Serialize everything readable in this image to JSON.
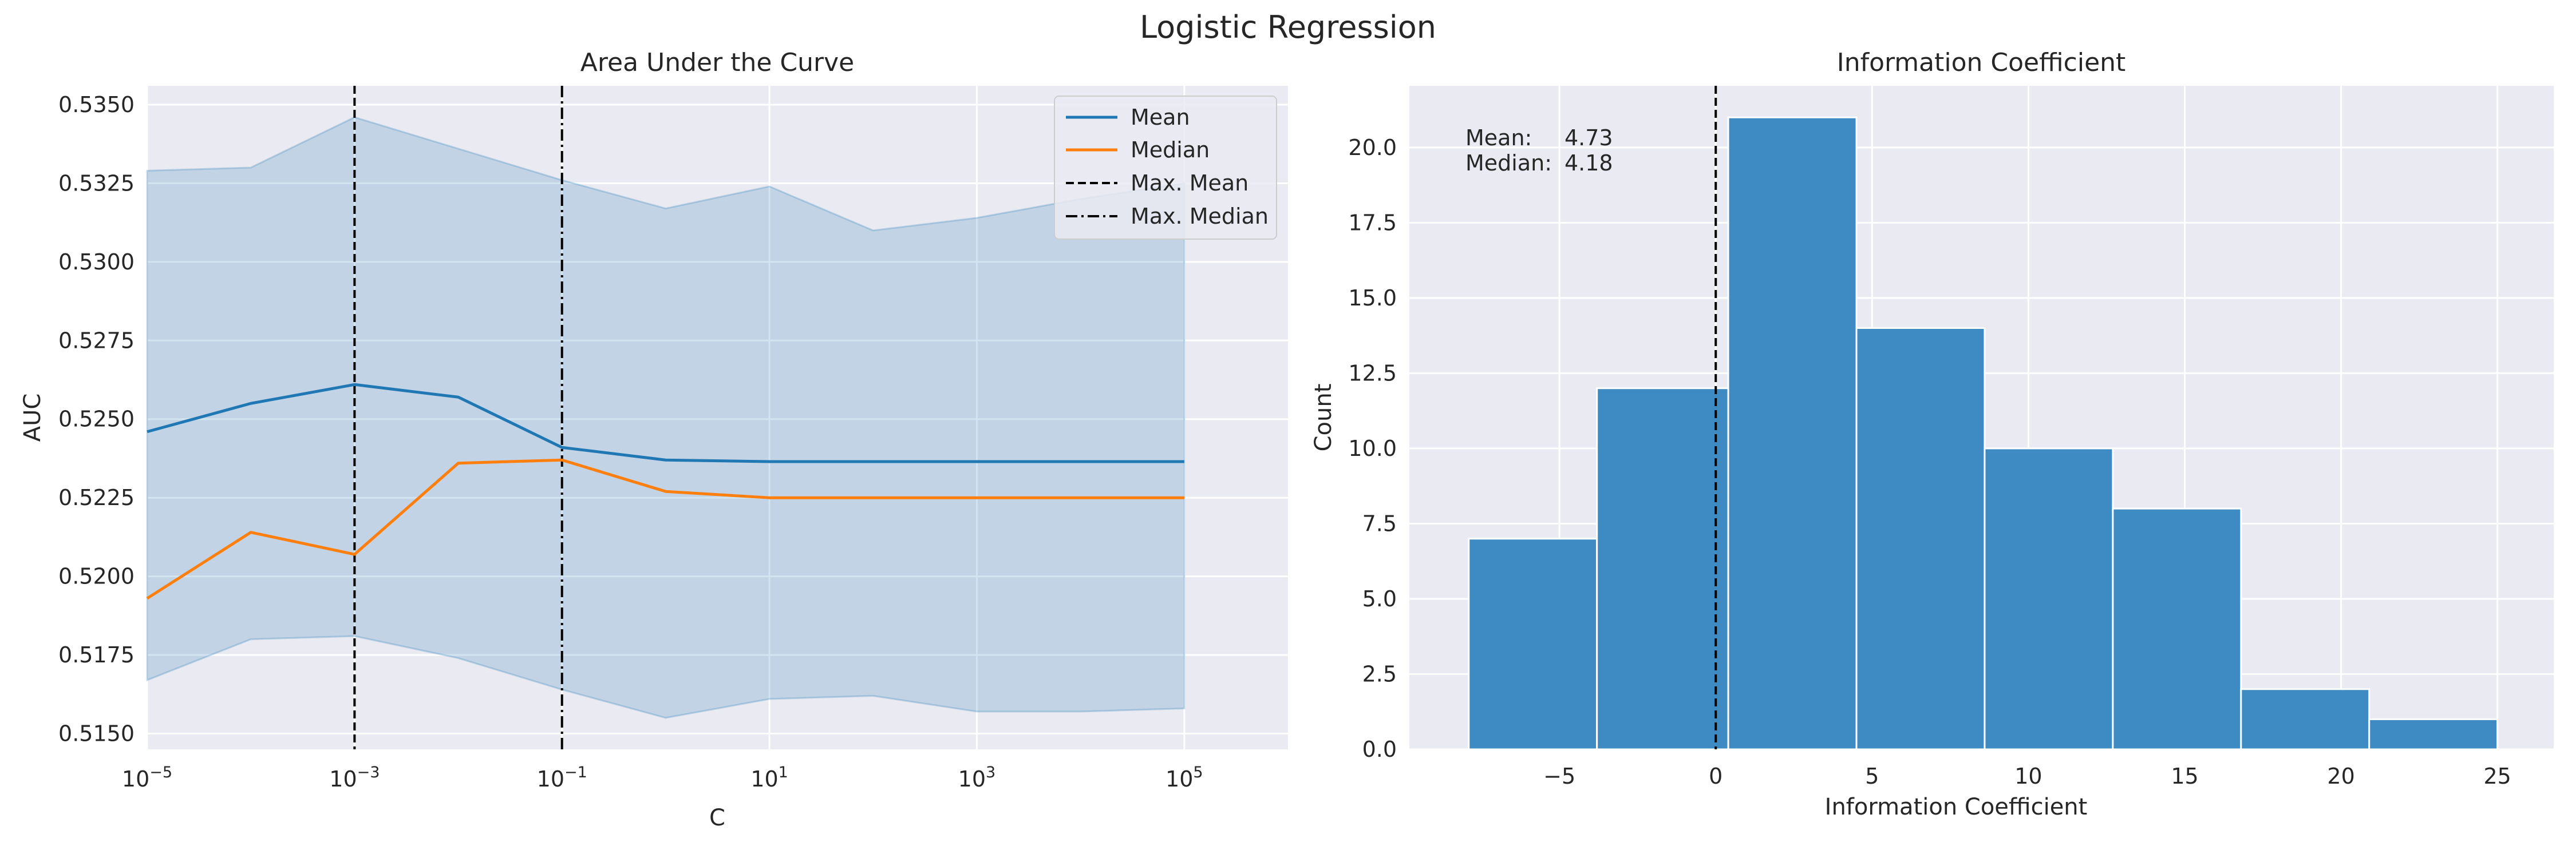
{
  "figure": {
    "suptitle": "Logistic Regression"
  },
  "chart_data": [
    {
      "type": "line",
      "title": "Area Under the Curve",
      "xlabel": "C",
      "ylabel": "AUC",
      "xscale": "log",
      "xlim_log10": [
        -5,
        6
      ],
      "ylim": [
        0.5145,
        0.5356
      ],
      "xticks_log10": [
        -5,
        -3,
        -1,
        1,
        3,
        5
      ],
      "yticks": [
        0.515,
        0.5175,
        0.52,
        0.5225,
        0.525,
        0.5275,
        0.53,
        0.5325,
        0.535
      ],
      "ytick_labels": [
        "0.5150",
        "0.5175",
        "0.5200",
        "0.5225",
        "0.5250",
        "0.5275",
        "0.5300",
        "0.5325",
        "0.5350"
      ],
      "x_log10": [
        -5,
        -4,
        -3,
        -2,
        -1,
        0,
        1,
        2,
        3,
        4,
        5
      ],
      "series": [
        {
          "name": "Mean",
          "color": "#1f77b4",
          "style": "solid",
          "values": [
            0.5246,
            0.5255,
            0.5261,
            0.5257,
            0.5241,
            0.5237,
            0.52365,
            0.52365,
            0.52365,
            0.52365,
            0.52365
          ]
        },
        {
          "name": "Median",
          "color": "#ff7f0e",
          "style": "solid",
          "values": [
            0.5193,
            0.5214,
            0.5207,
            0.5236,
            0.5237,
            0.5227,
            0.5225,
            0.5225,
            0.5225,
            0.5225,
            0.5225
          ]
        }
      ],
      "band": {
        "color": "#1f77b4",
        "upper": [
          0.5329,
          0.533,
          0.5346,
          0.5336,
          0.5326,
          0.5317,
          0.5324,
          0.531,
          0.5314,
          0.532,
          0.5325
        ],
        "lower": [
          0.5167,
          0.518,
          0.5181,
          0.5174,
          0.5164,
          0.5155,
          0.5161,
          0.5162,
          0.5157,
          0.5157,
          0.5158
        ]
      },
      "vlines": [
        {
          "name": "Max. Mean",
          "x_log10": -3,
          "style": "dashed",
          "color": "#000000"
        },
        {
          "name": "Max. Median",
          "x_log10": -1,
          "style": "dashdot",
          "color": "#000000"
        }
      ],
      "legend": {
        "placement": "top-right",
        "entries": [
          "Mean",
          "Median",
          "Max. Mean",
          "Max. Median"
        ]
      },
      "grid": true
    },
    {
      "type": "bar",
      "subtype": "histogram",
      "title": "Information Coefficient",
      "xlabel": "Information Coefficient",
      "ylabel": "Count",
      "xlim": [
        -9.8,
        26.8
      ],
      "ylim": [
        0,
        22.05
      ],
      "xticks": [
        -5,
        0,
        5,
        10,
        15,
        20,
        25
      ],
      "yticks": [
        0.0,
        2.5,
        5.0,
        7.5,
        10.0,
        12.5,
        15.0,
        17.5,
        20.0
      ],
      "ytick_labels": [
        "0.0",
        "2.5",
        "5.0",
        "7.5",
        "10.0",
        "12.5",
        "15.0",
        "17.5",
        "20.0"
      ],
      "bin_edges": [
        -7.9,
        -3.8,
        0.4,
        4.5,
        8.6,
        12.7,
        16.8,
        20.9,
        25.0
      ],
      "values": [
        7,
        12,
        21,
        14,
        10,
        8,
        2,
        1
      ],
      "bar_color": "#3d8bc2",
      "vline": {
        "x": 0,
        "style": "dashed",
        "color": "#000000"
      },
      "annotation": [
        {
          "label": "Mean:",
          "value": "4.73"
        },
        {
          "label": "Median:",
          "value": "4.18"
        }
      ],
      "grid": true
    }
  ]
}
